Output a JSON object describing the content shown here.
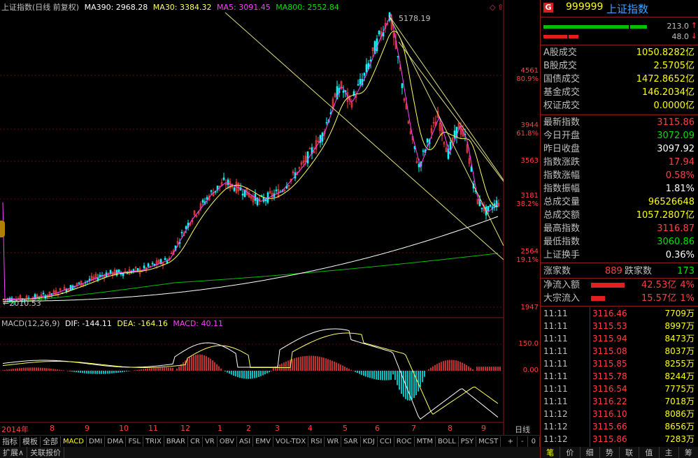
{
  "header": {
    "title": "上证指数(日线 前复权)",
    "ma390": "MA390: 2968.28",
    "ma30": "MA30: 3384.32",
    "ma5": "MA5: 3091.45",
    "ma800": "MA800: 2552.84"
  },
  "annotations": {
    "peak": "5178.19",
    "low": "2010.53"
  },
  "y_axis": {
    "prices": [
      "4561",
      "3944",
      "3563",
      "3181",
      "2564",
      "1947"
    ],
    "percents": [
      "80.9%",
      "61.8%",
      "38.2%",
      "19.1%"
    ]
  },
  "macd": {
    "title": "MACD(12,26,9)",
    "dif": "DIF: -144.11",
    "dea": "DEA: -164.16",
    "macd": "MACD: 40.11",
    "levels": [
      "150.0",
      "0.00"
    ]
  },
  "x_axis": {
    "year": "2014年",
    "months": [
      "8",
      "9",
      "10",
      "11",
      "12",
      "1",
      "2",
      "3",
      "4",
      "5",
      "6",
      "7",
      "8",
      "9"
    ],
    "period": "日线"
  },
  "indicator_tabs": [
    "指标",
    "模板",
    "全部",
    "MACD",
    "DMI",
    "DMA",
    "FSL",
    "TRIX",
    "BRAR",
    "CR",
    "VR",
    "OBV",
    "ASI",
    "EMV",
    "VOL-TDX",
    "RSI",
    "WR",
    "SAR",
    "KDJ",
    "CCI",
    "ROC",
    "MTM",
    "BOLL",
    "PSY",
    "MCST"
  ],
  "indicator_active": "MACD",
  "zoom_controls": [
    "+",
    "-",
    "0"
  ],
  "bottom_tabs": [
    "扩展∧",
    "关联报价"
  ],
  "panel": {
    "badge": "G",
    "code": "999999",
    "name": "上证指数",
    "up_vol": "213.0",
    "down_vol": "48.0",
    "rows": [
      {
        "label": "A股成交",
        "value": "1050.8282亿"
      },
      {
        "label": "B股成交",
        "value": "2.5705亿"
      },
      {
        "label": "国债成交",
        "value": "1472.8652亿"
      },
      {
        "label": "基金成交",
        "value": "146.2034亿"
      },
      {
        "label": "权证成交",
        "value": "0.0000亿"
      }
    ],
    "stats": [
      {
        "label": "最新指数",
        "value": "3115.86",
        "color": "#ff4040"
      },
      {
        "label": "今日开盘",
        "value": "3072.09",
        "color": "#00e000"
      },
      {
        "label": "昨日收盘",
        "value": "3097.92",
        "color": "#ffffff"
      },
      {
        "label": "指数涨跌",
        "value": "17.94",
        "color": "#ff4040"
      },
      {
        "label": "指数涨幅",
        "value": "0.58%",
        "color": "#ff4040"
      },
      {
        "label": "指数振幅",
        "value": "1.81%",
        "color": "#ffffff"
      },
      {
        "label": "总成交量",
        "value": "96526648",
        "color": "#ffff00"
      },
      {
        "label": "总成交额",
        "value": "1057.2807亿",
        "color": "#ffff00"
      },
      {
        "label": "最高指数",
        "value": "3116.87",
        "color": "#ff4040"
      },
      {
        "label": "最低指数",
        "value": "3060.86",
        "color": "#00e000"
      },
      {
        "label": "上证换手",
        "value": "0.36%",
        "color": "#ffffff"
      }
    ],
    "up_label": "涨家数",
    "up_count": "889",
    "down_label": "跌家数",
    "down_count": "173",
    "net_inflow_label": "净流入额",
    "net_inflow": "42.53亿",
    "net_inflow_pct": "4%",
    "block_label": "大宗流入",
    "block_inflow": "15.57亿",
    "block_pct": "1%",
    "ticks": [
      {
        "time": "11:11",
        "price": "3116.46",
        "vol": "7709万"
      },
      {
        "time": "11:11",
        "price": "3115.53",
        "vol": "8997万"
      },
      {
        "time": "11:11",
        "price": "3115.94",
        "vol": "8473万"
      },
      {
        "time": "11:11",
        "price": "3115.08",
        "vol": "8037万"
      },
      {
        "time": "11:11",
        "price": "3115.85",
        "vol": "8255万"
      },
      {
        "time": "11:11",
        "price": "3115.78",
        "vol": "8244万"
      },
      {
        "time": "11:11",
        "price": "3116.54",
        "vol": "7775万"
      },
      {
        "time": "11:11",
        "price": "3116.22",
        "vol": "7018万"
      },
      {
        "time": "11:12",
        "price": "3116.10",
        "vol": "8086万"
      },
      {
        "time": "11:12",
        "price": "3115.66",
        "vol": "8656万"
      },
      {
        "time": "11:12",
        "price": "3115.86",
        "vol": "7283万"
      }
    ],
    "tabs": [
      "笔",
      "价",
      "细",
      "势",
      "联",
      "值",
      "主",
      "筹"
    ]
  },
  "colors": {
    "up": "#ff4040",
    "down": "#00ffff",
    "ma5": "#ff40ff",
    "ma30": "#ffff60",
    "ma390": "#ffffff",
    "ma800": "#00c000"
  }
}
